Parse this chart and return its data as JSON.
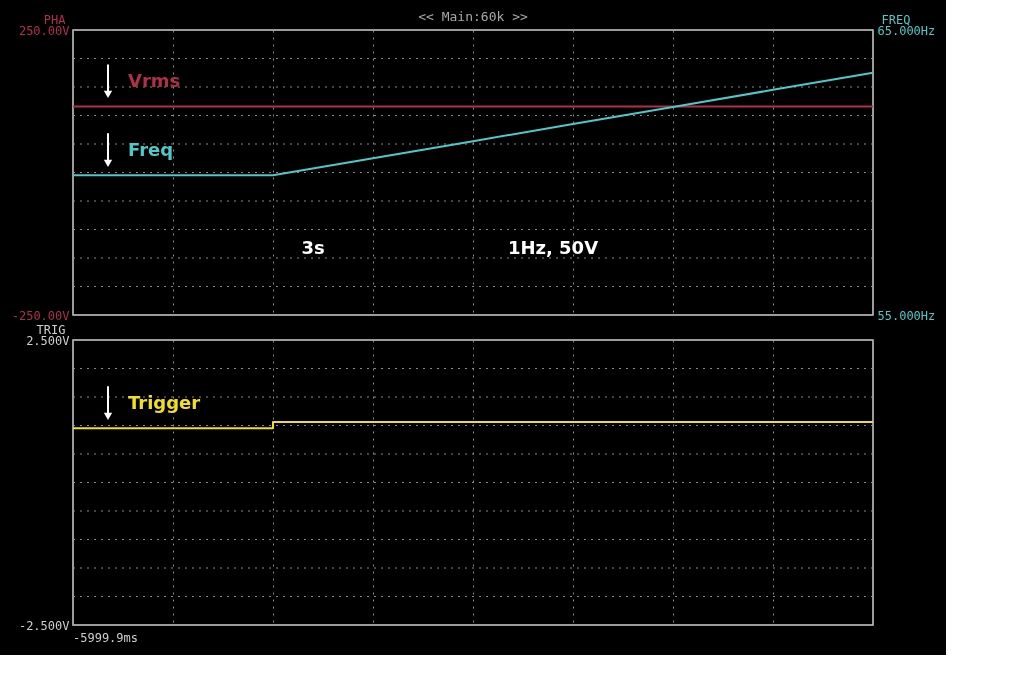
{
  "chart_data": [
    {
      "type": "line",
      "ylabel": "PHA",
      "y2label": "FREQ",
      "categories": [
        null,
        null,
        null,
        null,
        null,
        null,
        null,
        null,
        null
      ],
      "ylim": [
        -250,
        250
      ],
      "yticks": [
        {
          "value": -250,
          "label": "-250.00V"
        },
        {
          "value": -200,
          "label": null
        },
        {
          "value": -150,
          "label": null
        },
        {
          "value": -100,
          "label": null
        },
        {
          "value": -50,
          "label": null
        },
        {
          "value": 0,
          "label": null
        },
        {
          "value": 50,
          "label": null
        },
        {
          "value": 100,
          "label": null
        },
        {
          "value": 150,
          "label": null
        },
        {
          "value": 200,
          "label": null
        },
        {
          "value": 250,
          "label": "250.00V"
        }
      ],
      "y2lim": [
        55,
        65
      ],
      "y2ticks": [
        {
          "value": 55,
          "label": "55.000Hz"
        },
        {
          "value": 65,
          "label": "65.000Hz"
        }
      ],
      "series": [
        {
          "name": "Vrms",
          "color": "#b0304c",
          "values": [
            116,
            116,
            116,
            116,
            116,
            116,
            116,
            116,
            116
          ]
        },
        {
          "name": "Freq",
          "color": "#4ec8c8",
          "axis": "y2",
          "values": [
            59.9,
            59.9,
            59.9,
            60.5,
            61.1,
            61.7,
            62.3,
            62.9,
            63.5
          ]
        }
      ],
      "annotations": [
        "<< Main:60k >>",
        "3s",
        "1Hz, 50V"
      ],
      "grid": true,
      "tick_labels": "y"
    },
    {
      "type": "line",
      "ylabel": "TRIG",
      "categories": [
        null,
        null,
        null,
        null,
        null,
        null,
        null,
        null,
        null
      ],
      "ylim": [
        -2.5,
        2.5
      ],
      "yticks": [
        {
          "value": -2.5,
          "label": "-2.500V"
        },
        {
          "value": -2,
          "label": null
        },
        {
          "value": -1.5,
          "label": null
        },
        {
          "value": -1,
          "label": null
        },
        {
          "value": -0.5,
          "label": null
        },
        {
          "value": 0,
          "label": null
        },
        {
          "value": 0.5,
          "label": null
        },
        {
          "value": 1,
          "label": null
        },
        {
          "value": 1.5,
          "label": null
        },
        {
          "value": 2,
          "label": null
        },
        {
          "value": 2.5,
          "label": "2.500V"
        }
      ],
      "series": [
        {
          "name": "Trigger",
          "color": "#f0e020",
          "type": "step",
          "values": [
            0.95,
            0.95,
            1.06,
            1.06,
            1.06,
            1.06,
            1.06,
            1.06,
            1.06
          ]
        }
      ],
      "annotations": [
        "-5999.9ms"
      ],
      "grid": true,
      "tick_labels": "y"
    }
  ]
}
